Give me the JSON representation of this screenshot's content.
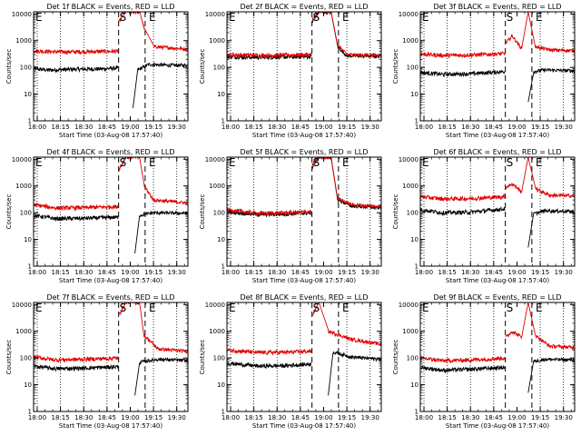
{
  "colors": {
    "events": "#000000",
    "lld": "#e00000",
    "axis": "#000000",
    "background": "#ffffff"
  },
  "shared": {
    "xlabel": "Start Time (03-Aug-08 17:57:40)",
    "ylabel": "Counts/sec",
    "xticks": [
      {
        "t": 18.0,
        "label": "18:00"
      },
      {
        "t": 18.25,
        "label": "18:15"
      },
      {
        "t": 18.5,
        "label": "18:30"
      },
      {
        "t": 18.75,
        "label": "18:45"
      },
      {
        "t": 19.0,
        "label": "19:00"
      },
      {
        "t": 19.25,
        "label": "19:15"
      },
      {
        "t": 19.5,
        "label": "19:30"
      }
    ],
    "yticks": [
      {
        "v": 1,
        "label": "1"
      },
      {
        "v": 10,
        "label": "10"
      },
      {
        "v": 100,
        "label": "100"
      },
      {
        "v": 1000,
        "label": "1000"
      },
      {
        "v": 10000,
        "label": "10000"
      }
    ],
    "xlim_hours": [
      17.961,
      19.62
    ],
    "ylim": [
      1,
      12000
    ],
    "yscale": "log",
    "dotted_lines_hours": [
      18.0,
      18.25,
      18.5,
      18.75,
      19.25,
      19.5
    ],
    "dashed_lines_hours": [
      18.875,
      19.16
    ],
    "markers": [
      {
        "t": 17.98,
        "label": "E"
      },
      {
        "t": 18.885,
        "label": "S"
      },
      {
        "t": 19.2,
        "label": "E"
      }
    ]
  },
  "chart_data": [
    {
      "type": "line",
      "title": "Det 1f BLACK = Events, RED = LLD",
      "series": [
        {
          "color": "#000000",
          "pre": [
            {
              "t": 17.961,
              "v": 90
            },
            {
              "t": 18.1,
              "v": 80
            },
            {
              "t": 18.4,
              "v": 85
            },
            {
              "t": 18.7,
              "v": 88
            },
            {
              "t": 18.872,
              "v": 95
            }
          ],
          "post": [
            {
              "t": 19.03,
              "v": 3
            },
            {
              "t": 19.08,
              "v": 80
            },
            {
              "t": 19.2,
              "v": 130
            },
            {
              "t": 19.4,
              "v": 120
            },
            {
              "t": 19.62,
              "v": 120
            }
          ]
        },
        {
          "color": "#e00000",
          "pre": [
            {
              "t": 17.961,
              "v": 420
            },
            {
              "t": 18.2,
              "v": 380
            },
            {
              "t": 18.5,
              "v": 385
            },
            {
              "t": 18.872,
              "v": 400
            }
          ],
          "post": [
            {
              "t": 18.878,
              "v": 5000
            },
            {
              "t": 18.95,
              "v": 12000
            },
            {
              "t": 19.1,
              "v": 12000
            },
            {
              "t": 19.15,
              "v": 3000
            },
            {
              "t": 19.25,
              "v": 600
            },
            {
              "t": 19.62,
              "v": 480
            }
          ]
        }
      ]
    },
    {
      "type": "line",
      "title": "Det 2f BLACK = Events, RED = LLD",
      "series": [
        {
          "color": "#000000",
          "pre": [
            {
              "t": 17.961,
              "v": 250
            },
            {
              "t": 18.3,
              "v": 240
            },
            {
              "t": 18.6,
              "v": 245
            },
            {
              "t": 18.872,
              "v": 255
            }
          ],
          "post": [
            {
              "t": 18.878,
              "v": 5000
            },
            {
              "t": 18.95,
              "v": 12000
            },
            {
              "t": 19.08,
              "v": 12000
            },
            {
              "t": 19.15,
              "v": 600
            },
            {
              "t": 19.25,
              "v": 270
            },
            {
              "t": 19.62,
              "v": 260
            }
          ]
        },
        {
          "color": "#e00000",
          "pre": [
            {
              "t": 17.961,
              "v": 300
            },
            {
              "t": 18.3,
              "v": 285
            },
            {
              "t": 18.6,
              "v": 290
            },
            {
              "t": 18.872,
              "v": 300
            }
          ],
          "post": [
            {
              "t": 18.878,
              "v": 6000
            },
            {
              "t": 18.95,
              "v": 12000
            },
            {
              "t": 19.08,
              "v": 12000
            },
            {
              "t": 19.15,
              "v": 700
            },
            {
              "t": 19.25,
              "v": 300
            },
            {
              "t": 19.62,
              "v": 290
            }
          ]
        }
      ]
    },
    {
      "type": "line",
      "title": "Det 3f BLACK = Events, RED = LLD",
      "series": [
        {
          "color": "#000000",
          "pre": [
            {
              "t": 17.961,
              "v": 65
            },
            {
              "t": 18.2,
              "v": 55
            },
            {
              "t": 18.5,
              "v": 58
            },
            {
              "t": 18.872,
              "v": 70
            }
          ],
          "post": [
            {
              "t": 19.12,
              "v": 5
            },
            {
              "t": 19.18,
              "v": 70
            },
            {
              "t": 19.3,
              "v": 80
            },
            {
              "t": 19.62,
              "v": 75
            }
          ]
        },
        {
          "color": "#e00000",
          "pre": [
            {
              "t": 17.961,
              "v": 320
            },
            {
              "t": 18.2,
              "v": 280
            },
            {
              "t": 18.5,
              "v": 290
            },
            {
              "t": 18.872,
              "v": 330
            }
          ],
          "post": [
            {
              "t": 18.878,
              "v": 800
            },
            {
              "t": 18.95,
              "v": 1500
            },
            {
              "t": 19.05,
              "v": 500
            },
            {
              "t": 19.12,
              "v": 12000
            },
            {
              "t": 19.2,
              "v": 600
            },
            {
              "t": 19.35,
              "v": 450
            },
            {
              "t": 19.62,
              "v": 420
            }
          ]
        }
      ]
    },
    {
      "type": "line",
      "title": "Det 4f BLACK = Events, RED = LLD",
      "series": [
        {
          "color": "#000000",
          "pre": [
            {
              "t": 17.961,
              "v": 80
            },
            {
              "t": 18.2,
              "v": 60
            },
            {
              "t": 18.5,
              "v": 62
            },
            {
              "t": 18.872,
              "v": 68
            }
          ],
          "post": [
            {
              "t": 19.05,
              "v": 3
            },
            {
              "t": 19.1,
              "v": 80
            },
            {
              "t": 19.25,
              "v": 100
            },
            {
              "t": 19.62,
              "v": 95
            }
          ]
        },
        {
          "color": "#e00000",
          "pre": [
            {
              "t": 17.961,
              "v": 200
            },
            {
              "t": 18.2,
              "v": 150
            },
            {
              "t": 18.5,
              "v": 155
            },
            {
              "t": 18.872,
              "v": 170
            }
          ],
          "post": [
            {
              "t": 18.878,
              "v": 4000
            },
            {
              "t": 18.95,
              "v": 12000
            },
            {
              "t": 19.1,
              "v": 12000
            },
            {
              "t": 19.15,
              "v": 1000
            },
            {
              "t": 19.25,
              "v": 300
            },
            {
              "t": 19.62,
              "v": 230
            }
          ]
        }
      ]
    },
    {
      "type": "line",
      "title": "Det 5f BLACK = Events, RED = LLD",
      "series": [
        {
          "color": "#000000",
          "pre": [
            {
              "t": 17.961,
              "v": 110
            },
            {
              "t": 18.3,
              "v": 85
            },
            {
              "t": 18.6,
              "v": 90
            },
            {
              "t": 18.872,
              "v": 100
            }
          ],
          "post": [
            {
              "t": 18.878,
              "v": 5000
            },
            {
              "t": 18.95,
              "v": 12000
            },
            {
              "t": 19.08,
              "v": 12000
            },
            {
              "t": 19.15,
              "v": 300
            },
            {
              "t": 19.3,
              "v": 180
            },
            {
              "t": 19.62,
              "v": 150
            }
          ]
        },
        {
          "color": "#e00000",
          "pre": [
            {
              "t": 17.961,
              "v": 130
            },
            {
              "t": 18.3,
              "v": 95
            },
            {
              "t": 18.6,
              "v": 100
            },
            {
              "t": 18.872,
              "v": 110
            }
          ],
          "post": [
            {
              "t": 18.878,
              "v": 6000
            },
            {
              "t": 18.95,
              "v": 12000
            },
            {
              "t": 19.08,
              "v": 12000
            },
            {
              "t": 19.15,
              "v": 350
            },
            {
              "t": 19.3,
              "v": 200
            },
            {
              "t": 19.62,
              "v": 170
            }
          ]
        }
      ]
    },
    {
      "type": "line",
      "title": "Det 6f BLACK = Events, RED = LLD",
      "series": [
        {
          "color": "#000000",
          "pre": [
            {
              "t": 17.961,
              "v": 130
            },
            {
              "t": 18.2,
              "v": 100
            },
            {
              "t": 18.5,
              "v": 105
            },
            {
              "t": 18.872,
              "v": 140
            }
          ],
          "post": [
            {
              "t": 19.12,
              "v": 5
            },
            {
              "t": 19.18,
              "v": 90
            },
            {
              "t": 19.3,
              "v": 120
            },
            {
              "t": 19.62,
              "v": 110
            }
          ]
        },
        {
          "color": "#e00000",
          "pre": [
            {
              "t": 17.961,
              "v": 400
            },
            {
              "t": 18.2,
              "v": 330
            },
            {
              "t": 18.5,
              "v": 340
            },
            {
              "t": 18.872,
              "v": 400
            }
          ],
          "post": [
            {
              "t": 18.878,
              "v": 900
            },
            {
              "t": 18.95,
              "v": 1200
            },
            {
              "t": 19.05,
              "v": 600
            },
            {
              "t": 19.12,
              "v": 12000
            },
            {
              "t": 19.2,
              "v": 800
            },
            {
              "t": 19.35,
              "v": 450
            },
            {
              "t": 19.62,
              "v": 430
            }
          ]
        }
      ]
    },
    {
      "type": "line",
      "title": "Det 7f BLACK = Events, RED = LLD",
      "series": [
        {
          "color": "#000000",
          "pre": [
            {
              "t": 17.961,
              "v": 50
            },
            {
              "t": 18.2,
              "v": 40
            },
            {
              "t": 18.5,
              "v": 42
            },
            {
              "t": 18.872,
              "v": 48
            }
          ],
          "post": [
            {
              "t": 19.05,
              "v": 4
            },
            {
              "t": 19.1,
              "v": 70
            },
            {
              "t": 19.3,
              "v": 90
            },
            {
              "t": 19.62,
              "v": 80
            }
          ]
        },
        {
          "color": "#e00000",
          "pre": [
            {
              "t": 17.961,
              "v": 110
            },
            {
              "t": 18.2,
              "v": 85
            },
            {
              "t": 18.5,
              "v": 90
            },
            {
              "t": 18.872,
              "v": 100
            }
          ],
          "post": [
            {
              "t": 18.878,
              "v": 4000
            },
            {
              "t": 18.95,
              "v": 12000
            },
            {
              "t": 19.1,
              "v": 12000
            },
            {
              "t": 19.15,
              "v": 700
            },
            {
              "t": 19.3,
              "v": 220
            },
            {
              "t": 19.62,
              "v": 180
            }
          ]
        }
      ]
    },
    {
      "type": "line",
      "title": "Det 8f BLACK = Events, RED = LLD",
      "series": [
        {
          "color": "#000000",
          "pre": [
            {
              "t": 17.961,
              "v": 65
            },
            {
              "t": 18.3,
              "v": 50
            },
            {
              "t": 18.6,
              "v": 52
            },
            {
              "t": 18.872,
              "v": 60
            }
          ],
          "post": [
            {
              "t": 19.05,
              "v": 4
            },
            {
              "t": 19.1,
              "v": 170
            },
            {
              "t": 19.3,
              "v": 110
            },
            {
              "t": 19.62,
              "v": 90
            }
          ]
        },
        {
          "color": "#e00000",
          "pre": [
            {
              "t": 17.961,
              "v": 200
            },
            {
              "t": 18.3,
              "v": 160
            },
            {
              "t": 18.6,
              "v": 165
            },
            {
              "t": 18.872,
              "v": 180
            }
          ],
          "post": [
            {
              "t": 18.878,
              "v": 4000
            },
            {
              "t": 18.95,
              "v": 12000
            },
            {
              "t": 19.05,
              "v": 1000
            },
            {
              "t": 19.3,
              "v": 500
            },
            {
              "t": 19.62,
              "v": 330
            }
          ]
        }
      ]
    },
    {
      "type": "line",
      "title": "Det 9f BLACK = Events, RED = LLD",
      "series": [
        {
          "color": "#000000",
          "pre": [
            {
              "t": 17.961,
              "v": 45
            },
            {
              "t": 18.2,
              "v": 35
            },
            {
              "t": 18.5,
              "v": 38
            },
            {
              "t": 18.872,
              "v": 45
            }
          ],
          "post": [
            {
              "t": 19.12,
              "v": 5
            },
            {
              "t": 19.18,
              "v": 75
            },
            {
              "t": 19.3,
              "v": 90
            },
            {
              "t": 19.62,
              "v": 85
            }
          ]
        },
        {
          "color": "#e00000",
          "pre": [
            {
              "t": 17.961,
              "v": 100
            },
            {
              "t": 18.2,
              "v": 80
            },
            {
              "t": 18.5,
              "v": 85
            },
            {
              "t": 18.872,
              "v": 100
            }
          ],
          "post": [
            {
              "t": 18.878,
              "v": 600
            },
            {
              "t": 18.95,
              "v": 1000
            },
            {
              "t": 19.05,
              "v": 600
            },
            {
              "t": 19.12,
              "v": 12000
            },
            {
              "t": 19.2,
              "v": 700
            },
            {
              "t": 19.35,
              "v": 280
            },
            {
              "t": 19.62,
              "v": 250
            }
          ]
        }
      ]
    }
  ]
}
